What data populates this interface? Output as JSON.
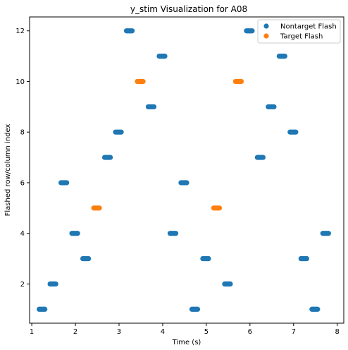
{
  "chart_data": {
    "type": "scatter",
    "title": "y_stim Visualization for A08",
    "xlabel": "Time (s)",
    "ylabel": "Flashed row/column index",
    "xlim": [
      0.95,
      8.15
    ],
    "ylim": [
      0.45,
      12.55
    ],
    "x_ticks": [
      1,
      2,
      3,
      4,
      5,
      6,
      7,
      8
    ],
    "y_ticks": [
      2,
      4,
      6,
      8,
      10,
      12
    ],
    "grid": false,
    "legend_position": "top-right",
    "series": [
      {
        "name": "Nontarget Flash",
        "color": "#1f77b4",
        "points": [
          {
            "x_start": 1.17,
            "x_end": 1.3,
            "y": 1
          },
          {
            "x_start": 1.42,
            "x_end": 1.55,
            "y": 2
          },
          {
            "x_start": 1.67,
            "x_end": 1.8,
            "y": 6
          },
          {
            "x_start": 1.92,
            "x_end": 2.05,
            "y": 4
          },
          {
            "x_start": 2.17,
            "x_end": 2.3,
            "y": 3
          },
          {
            "x_start": 2.67,
            "x_end": 2.8,
            "y": 7
          },
          {
            "x_start": 2.92,
            "x_end": 3.05,
            "y": 8
          },
          {
            "x_start": 3.17,
            "x_end": 3.3,
            "y": 12
          },
          {
            "x_start": 3.67,
            "x_end": 3.8,
            "y": 9
          },
          {
            "x_start": 3.92,
            "x_end": 4.05,
            "y": 11
          },
          {
            "x_start": 4.17,
            "x_end": 4.3,
            "y": 4
          },
          {
            "x_start": 4.42,
            "x_end": 4.55,
            "y": 6
          },
          {
            "x_start": 4.67,
            "x_end": 4.8,
            "y": 1
          },
          {
            "x_start": 4.92,
            "x_end": 5.05,
            "y": 3
          },
          {
            "x_start": 5.42,
            "x_end": 5.55,
            "y": 2
          },
          {
            "x_start": 5.92,
            "x_end": 6.05,
            "y": 12
          },
          {
            "x_start": 6.17,
            "x_end": 6.3,
            "y": 7
          },
          {
            "x_start": 6.42,
            "x_end": 6.55,
            "y": 9
          },
          {
            "x_start": 6.67,
            "x_end": 6.8,
            "y": 11
          },
          {
            "x_start": 6.92,
            "x_end": 7.05,
            "y": 8
          },
          {
            "x_start": 7.17,
            "x_end": 7.3,
            "y": 3
          },
          {
            "x_start": 7.42,
            "x_end": 7.55,
            "y": 1
          },
          {
            "x_start": 7.67,
            "x_end": 7.8,
            "y": 4
          }
        ]
      },
      {
        "name": "Target Flash",
        "color": "#ff7f0e",
        "points": [
          {
            "x_start": 2.42,
            "x_end": 2.55,
            "y": 5
          },
          {
            "x_start": 3.42,
            "x_end": 3.55,
            "y": 10
          },
          {
            "x_start": 5.17,
            "x_end": 5.3,
            "y": 5
          },
          {
            "x_start": 5.67,
            "x_end": 5.8,
            "y": 10
          }
        ]
      }
    ]
  }
}
